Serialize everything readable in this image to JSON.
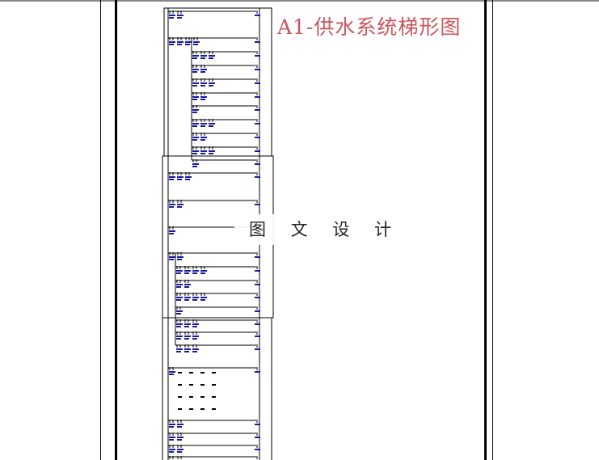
{
  "document": {
    "title": "A1-供水系统梯形图",
    "watermark": "图 文 设 计"
  },
  "colors": {
    "title": "#c8555e",
    "contact_labels": "#1a1aa0",
    "lines": "#000000"
  }
}
